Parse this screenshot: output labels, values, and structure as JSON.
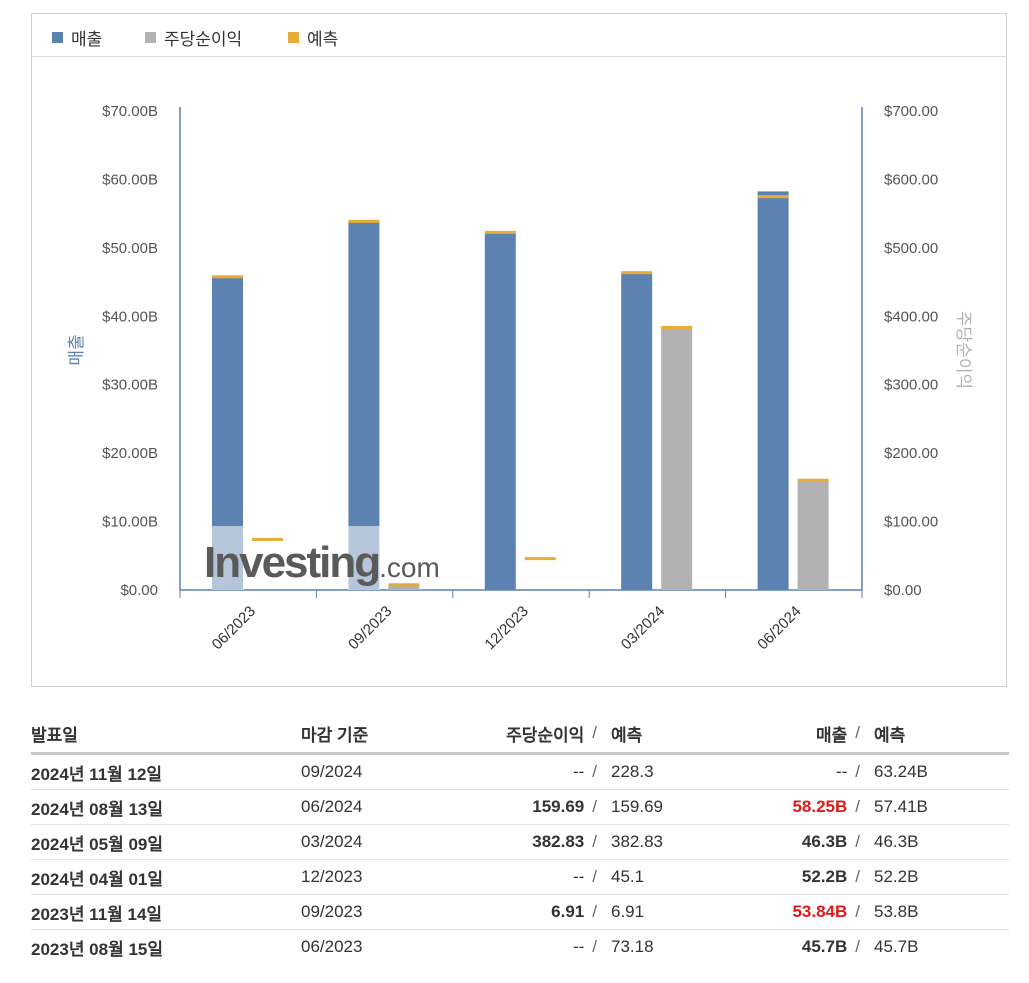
{
  "legend": {
    "revenue": "매출",
    "eps": "주당순이익",
    "forecast": "예측"
  },
  "colors": {
    "revenue": "#5b82b0",
    "eps": "#b2b2b2",
    "forecast": "#e8ac36",
    "beat": "#e01a1a"
  },
  "watermark": {
    "brand": "Investing",
    "suffix": ".com"
  },
  "chart_data": {
    "type": "bar",
    "categories": [
      "06/2023",
      "09/2023",
      "12/2023",
      "03/2024",
      "06/2024"
    ],
    "y_left": {
      "label": "매출",
      "range": [
        0,
        70
      ],
      "ticks": [
        "$0.00",
        "$10.00B",
        "$20.00B",
        "$30.00B",
        "$40.00B",
        "$50.00B",
        "$60.00B",
        "$70.00B"
      ]
    },
    "y_right": {
      "label": "주당순이익",
      "range": [
        0,
        700
      ],
      "ticks": [
        "$0.00",
        "$100.00",
        "$200.00",
        "$300.00",
        "$400.00",
        "$500.00",
        "$600.00",
        "$700.00"
      ]
    },
    "series": [
      {
        "name": "매출",
        "axis": "left",
        "values": [
          45.7,
          53.84,
          52.2,
          46.3,
          58.25
        ],
        "forecast": [
          45.7,
          53.8,
          52.2,
          46.3,
          57.41
        ]
      },
      {
        "name": "주당순이익",
        "axis": "right",
        "values": [
          null,
          6.91,
          null,
          382.83,
          159.69
        ],
        "forecast": [
          73.18,
          6.91,
          45.1,
          382.83,
          159.69
        ]
      }
    ],
    "grid": false,
    "legend_position": "top-left"
  },
  "table": {
    "headers": {
      "date": "발표일",
      "period": "마감 기준",
      "eps": "주당순이익",
      "eps_forecast": "예측",
      "revenue": "매출",
      "revenue_forecast": "예측"
    },
    "separator": "/",
    "rows": [
      {
        "date": "2024년 11월 12일",
        "period": "09/2024",
        "eps": "--",
        "eps_forecast": "228.3",
        "revenue": "--",
        "revenue_forecast": "63.24B",
        "eps_bold": false,
        "rev_bold": false,
        "rev_red": false
      },
      {
        "date": "2024년 08월 13일",
        "period": "06/2024",
        "eps": "159.69",
        "eps_forecast": "159.69",
        "revenue": "58.25B",
        "revenue_forecast": "57.41B",
        "eps_bold": true,
        "rev_bold": true,
        "rev_red": true
      },
      {
        "date": "2024년 05월 09일",
        "period": "03/2024",
        "eps": "382.83",
        "eps_forecast": "382.83",
        "revenue": "46.3B",
        "revenue_forecast": "46.3B",
        "eps_bold": true,
        "rev_bold": true,
        "rev_red": false
      },
      {
        "date": "2024년 04월 01일",
        "period": "12/2023",
        "eps": "--",
        "eps_forecast": "45.1",
        "revenue": "52.2B",
        "revenue_forecast": "52.2B",
        "eps_bold": false,
        "rev_bold": true,
        "rev_red": false
      },
      {
        "date": "2023년 11월 14일",
        "period": "09/2023",
        "eps": "6.91",
        "eps_forecast": "6.91",
        "revenue": "53.84B",
        "revenue_forecast": "53.8B",
        "eps_bold": true,
        "rev_bold": true,
        "rev_red": true
      },
      {
        "date": "2023년 08월 15일",
        "period": "06/2023",
        "eps": "--",
        "eps_forecast": "73.18",
        "revenue": "45.7B",
        "revenue_forecast": "45.7B",
        "eps_bold": false,
        "rev_bold": true,
        "rev_red": false
      }
    ]
  }
}
